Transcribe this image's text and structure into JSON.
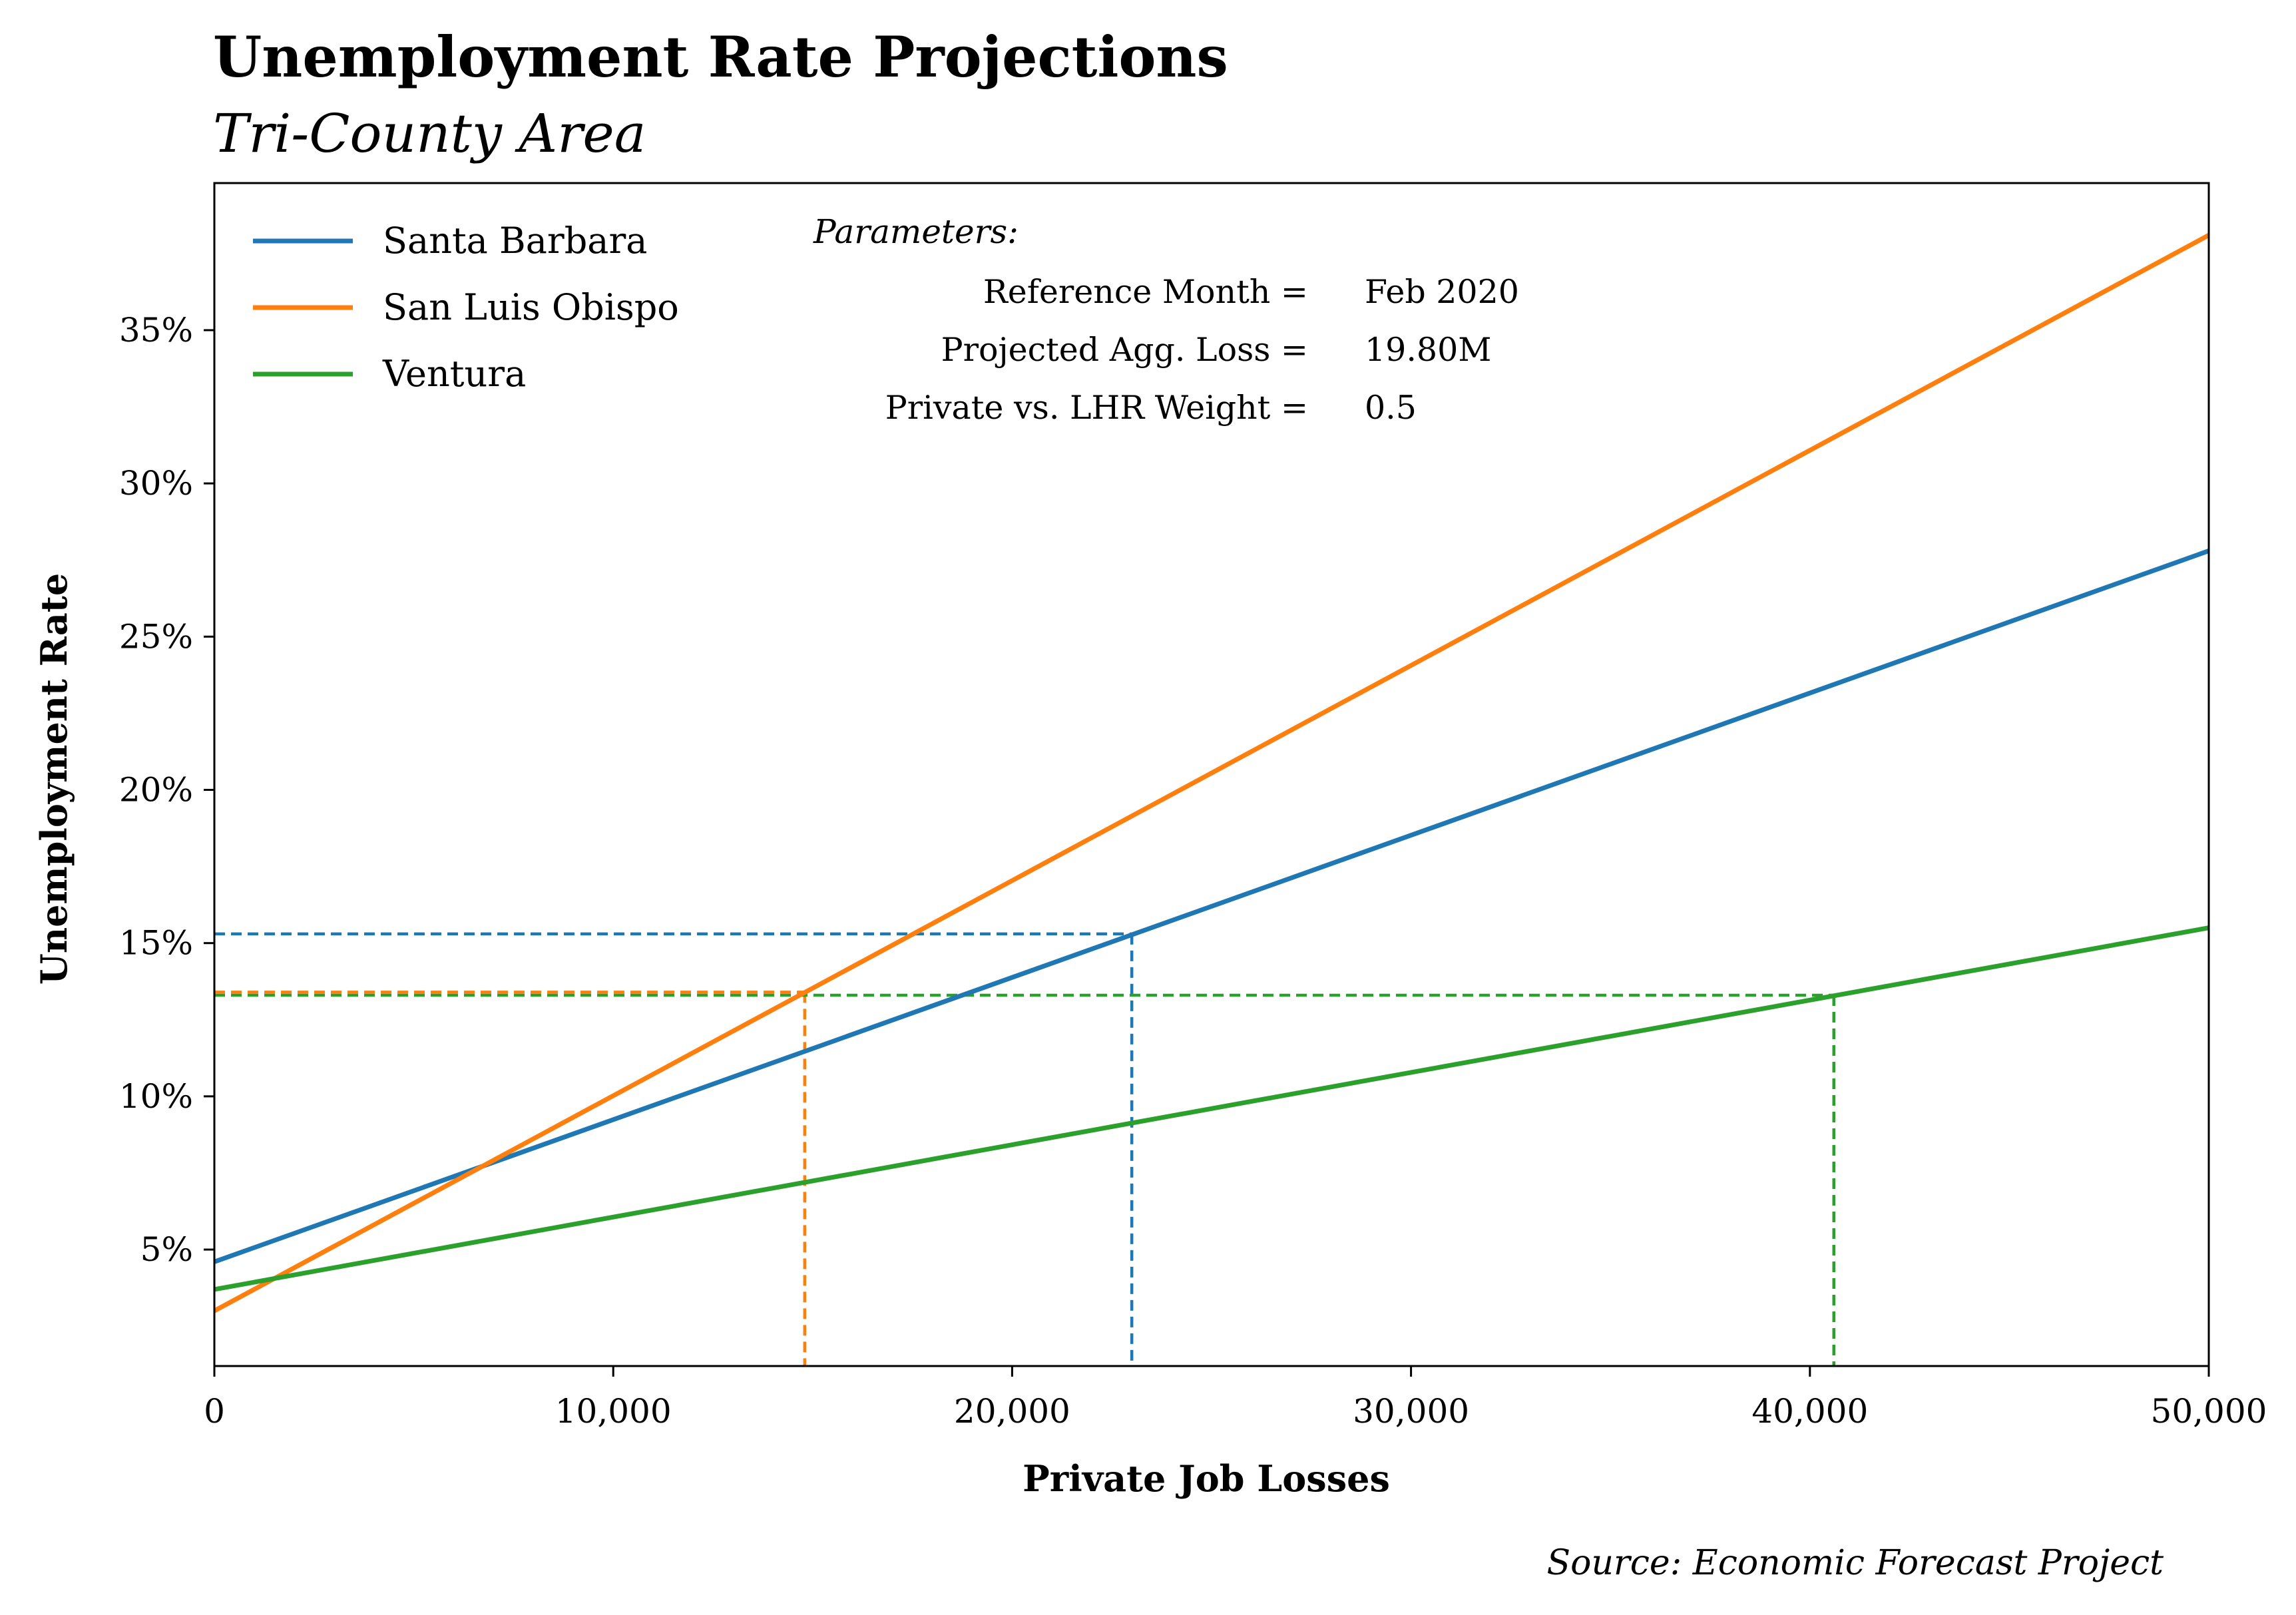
{
  "chart_data": {
    "type": "line",
    "title": "Unemployment Rate Projections",
    "subtitle": "Tri-County Area",
    "xlabel": "Private Job Losses",
    "ylabel": "Unemployment Rate",
    "xlim": [
      0,
      50000
    ],
    "ylim": [
      1.2,
      39.8
    ],
    "x_ticks": [
      0,
      10000,
      20000,
      30000,
      40000,
      50000
    ],
    "x_tick_labels": [
      "0",
      "10,000",
      "20,000",
      "30,000",
      "40,000",
      "50,000"
    ],
    "y_ticks": [
      5,
      10,
      15,
      20,
      25,
      30,
      35
    ],
    "y_tick_labels": [
      "5%",
      "10%",
      "15%",
      "20%",
      "25%",
      "30%",
      "35%"
    ],
    "grid": false,
    "legend_position": "top-left",
    "series": [
      {
        "name": "Santa Barbara",
        "color": "#1f77b4",
        "x": [
          0,
          50000
        ],
        "y": [
          4.6,
          27.8
        ]
      },
      {
        "name": "San Luis Obispo",
        "color": "#ff7f0e",
        "x": [
          0,
          50000
        ],
        "y": [
          3.0,
          38.1
        ]
      },
      {
        "name": "Ventura",
        "color": "#2ca02c",
        "x": [
          0,
          50000
        ],
        "y": [
          3.7,
          15.5
        ]
      }
    ],
    "reference_markers": [
      {
        "series": "Santa Barbara",
        "x": 23000,
        "y": 15.3,
        "color": "#1f77b4"
      },
      {
        "series": "San Luis Obispo",
        "x": 14800,
        "y": 13.4,
        "color": "#ff7f0e"
      },
      {
        "series": "Ventura",
        "x": 40600,
        "y": 13.3,
        "color": "#2ca02c"
      }
    ],
    "parameters": {
      "heading": "Parameters:",
      "rows": [
        {
          "label": "Reference Month =",
          "value": "Feb 2020"
        },
        {
          "label": "Projected Agg. Loss =",
          "value": "19.80M"
        },
        {
          "label": "Private vs. LHR Weight =",
          "value": "0.5"
        }
      ]
    },
    "source": "Source: Economic Forecast Project"
  }
}
